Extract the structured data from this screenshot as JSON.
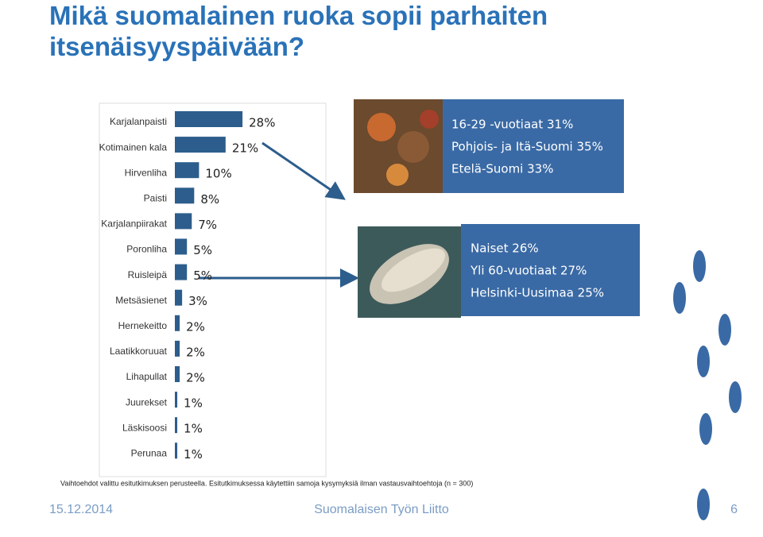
{
  "title": "Mikä suomalainen ruoka sopii parhaiten itsenäisyyspäivään?",
  "chart_data": {
    "type": "bar",
    "orientation": "horizontal",
    "categories": [
      "Karjalanpaisti",
      "Kotimainen kala",
      "Hirvenliha",
      "Paisti",
      "Karjalanpiirakat",
      "Poronliha",
      "Ruisleipä",
      "Metsäsienet",
      "Hernekeitto",
      "Laatikkoruuat",
      "Lihapullat",
      "Juurekset",
      "Läskisoosi",
      "Perunaa"
    ],
    "values": [
      28,
      21,
      10,
      8,
      7,
      5,
      5,
      3,
      2,
      2,
      2,
      1,
      1,
      1
    ],
    "value_labels": [
      "28%",
      "21%",
      "10%",
      "8%",
      "7%",
      "5%",
      "5%",
      "3%",
      "2%",
      "2%",
      "2%",
      "1%",
      "1%",
      "1%"
    ],
    "color": "#2c5d8c"
  },
  "callouts": [
    [
      "16-29 -vuotiaat 31%",
      "Pohjois- ja Itä-Suomi 35%",
      "Etelä-Suomi 33%"
    ],
    [
      "Naiset 26%",
      "Yli 60-vuotiaat 27%",
      "Helsinki-Uusimaa 25%"
    ]
  ],
  "footnote": "Vaihtoehdot valittu esitutkimuksen perusteella. Esitutkimuksessa käytettiin samoja kysymyksiä ilman vastausvaihtoehtoja (n = 300)",
  "footer": {
    "date": "15.12.2014",
    "organization": "Suomalaisen Työn Liitto",
    "page": "6"
  }
}
